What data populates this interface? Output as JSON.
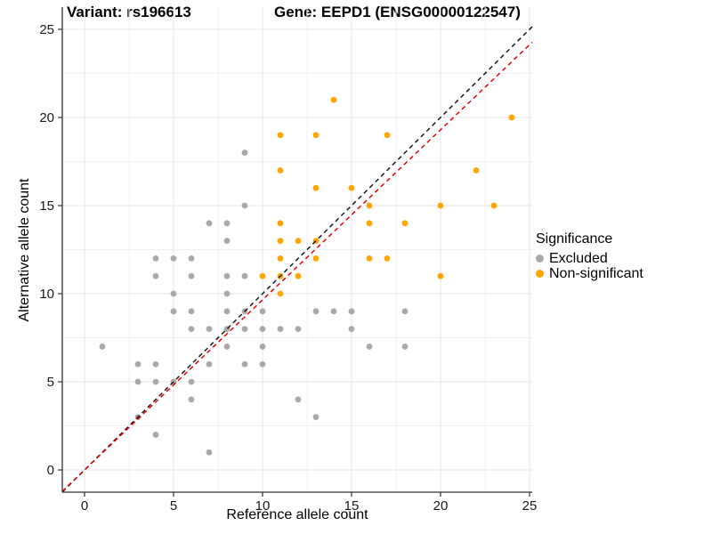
{
  "chart_data": {
    "type": "scatter",
    "title_left": "Variant: rs196613",
    "title_right": "Gene: EEPD1 (ENSG00000122547)",
    "xlabel": "Reference allele count",
    "ylabel": "Alternative allele count",
    "xlim": [
      -1.25,
      25.15
    ],
    "ylim": [
      -1.26,
      26.26
    ],
    "xticks": [
      0,
      5,
      10,
      15,
      20,
      25
    ],
    "yticks": [
      0,
      5,
      10,
      15,
      20,
      25
    ],
    "minor_gridlines_x": [
      2.5,
      7.5,
      12.5,
      17.5,
      22.5
    ],
    "minor_gridlines_y": [
      2.5,
      7.5,
      12.5,
      17.5,
      22.5
    ],
    "grid": true,
    "legend": {
      "title": "Significance",
      "position": "right",
      "items": [
        {
          "label": "Excluded",
          "color": "#A9A9A9"
        },
        {
          "label": "Non-significant",
          "color": "#FFA500"
        }
      ]
    },
    "lines": [
      {
        "name": "identity",
        "slope": 1,
        "intercept": 0,
        "color": "#1A1A1A",
        "style": "dashed"
      },
      {
        "name": "trend",
        "slope": 0.965,
        "intercept": 0,
        "color": "#EE0000",
        "style": "dashed"
      }
    ],
    "series": [
      {
        "name": "Excluded",
        "color": "#A9A9A9",
        "points": [
          [
            1,
            7
          ],
          [
            3,
            3
          ],
          [
            3,
            5
          ],
          [
            3,
            6
          ],
          [
            4,
            2
          ],
          [
            4,
            5
          ],
          [
            4,
            6
          ],
          [
            4,
            11
          ],
          [
            4,
            12
          ],
          [
            5,
            5
          ],
          [
            5,
            9
          ],
          [
            5,
            10
          ],
          [
            5,
            12
          ],
          [
            6,
            4
          ],
          [
            6,
            5
          ],
          [
            6,
            8
          ],
          [
            6,
            9
          ],
          [
            6,
            11
          ],
          [
            6,
            12
          ],
          [
            7,
            1
          ],
          [
            7,
            6
          ],
          [
            7,
            8
          ],
          [
            7,
            14
          ],
          [
            8,
            7
          ],
          [
            8,
            8
          ],
          [
            8,
            9
          ],
          [
            8,
            10
          ],
          [
            8,
            11
          ],
          [
            8,
            13
          ],
          [
            8,
            14
          ],
          [
            9,
            6
          ],
          [
            9,
            8
          ],
          [
            9,
            9
          ],
          [
            9,
            11
          ],
          [
            9,
            15
          ],
          [
            9,
            18
          ],
          [
            10,
            6
          ],
          [
            10,
            7
          ],
          [
            10,
            8
          ],
          [
            10,
            9
          ],
          [
            11,
            8
          ],
          [
            12,
            4
          ],
          [
            12,
            8
          ],
          [
            13,
            3
          ],
          [
            13,
            9
          ],
          [
            14,
            9
          ],
          [
            15,
            8
          ],
          [
            15,
            9
          ],
          [
            16,
            7
          ],
          [
            18,
            7
          ],
          [
            18,
            9
          ]
        ]
      },
      {
        "name": "Non-significant",
        "color": "#FFA500",
        "points": [
          [
            10,
            11
          ],
          [
            11,
            10
          ],
          [
            11,
            11
          ],
          [
            11,
            12
          ],
          [
            11,
            13
          ],
          [
            11,
            14
          ],
          [
            11,
            17
          ],
          [
            11,
            19
          ],
          [
            12,
            11
          ],
          [
            12,
            13
          ],
          [
            13,
            12
          ],
          [
            13,
            13
          ],
          [
            13,
            16
          ],
          [
            13,
            19
          ],
          [
            14,
            21
          ],
          [
            15,
            16
          ],
          [
            16,
            12
          ],
          [
            16,
            14
          ],
          [
            16,
            15
          ],
          [
            17,
            12
          ],
          [
            17,
            19
          ],
          [
            18,
            14
          ],
          [
            20,
            11
          ],
          [
            20,
            15
          ],
          [
            22,
            17
          ],
          [
            23,
            15
          ],
          [
            24,
            20
          ]
        ]
      }
    ]
  }
}
